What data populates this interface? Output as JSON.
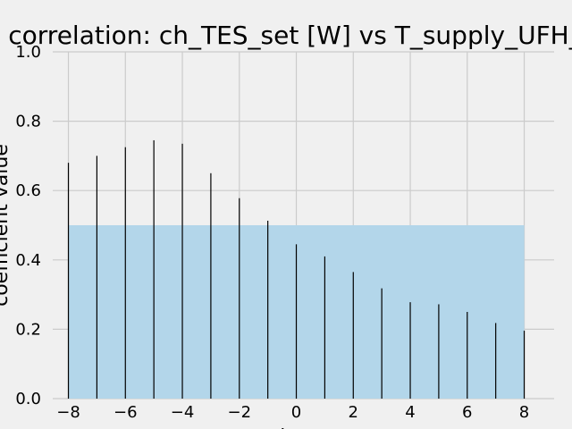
{
  "chart_data": {
    "type": "bar",
    "title": "correlation: ch_TES_set [W] vs T_supply_UFH_",
    "ylabel": "coefficient value",
    "xlabel": "lag",
    "x": [
      -8,
      -7,
      -6,
      -5,
      -4,
      -3,
      -2,
      -1,
      0,
      1,
      2,
      3,
      4,
      5,
      6,
      7,
      8
    ],
    "values": [
      0.68,
      0.7,
      0.725,
      0.745,
      0.735,
      0.65,
      0.578,
      0.513,
      0.445,
      0.41,
      0.365,
      0.318,
      0.278,
      0.272,
      0.25,
      0.218,
      0.196
    ],
    "band": {
      "y_from": 0.0,
      "y_to": 0.5,
      "x_from": -8,
      "x_to": 8
    },
    "xlim": [
      -8.55,
      9.05
    ],
    "ylim": [
      0.0,
      1.0
    ],
    "xticks": [
      "−8",
      "−6",
      "−4",
      "−2",
      "0",
      "2",
      "4",
      "6",
      "8"
    ],
    "yticks": [
      "0.0",
      "0.2",
      "0.4",
      "0.6",
      "0.8",
      "1.0"
    ],
    "grid": true,
    "colors": {
      "background": "#f0f0f0",
      "grid": "#cbcbcb",
      "bar": "#000000",
      "band": "#b3d6ea"
    }
  }
}
